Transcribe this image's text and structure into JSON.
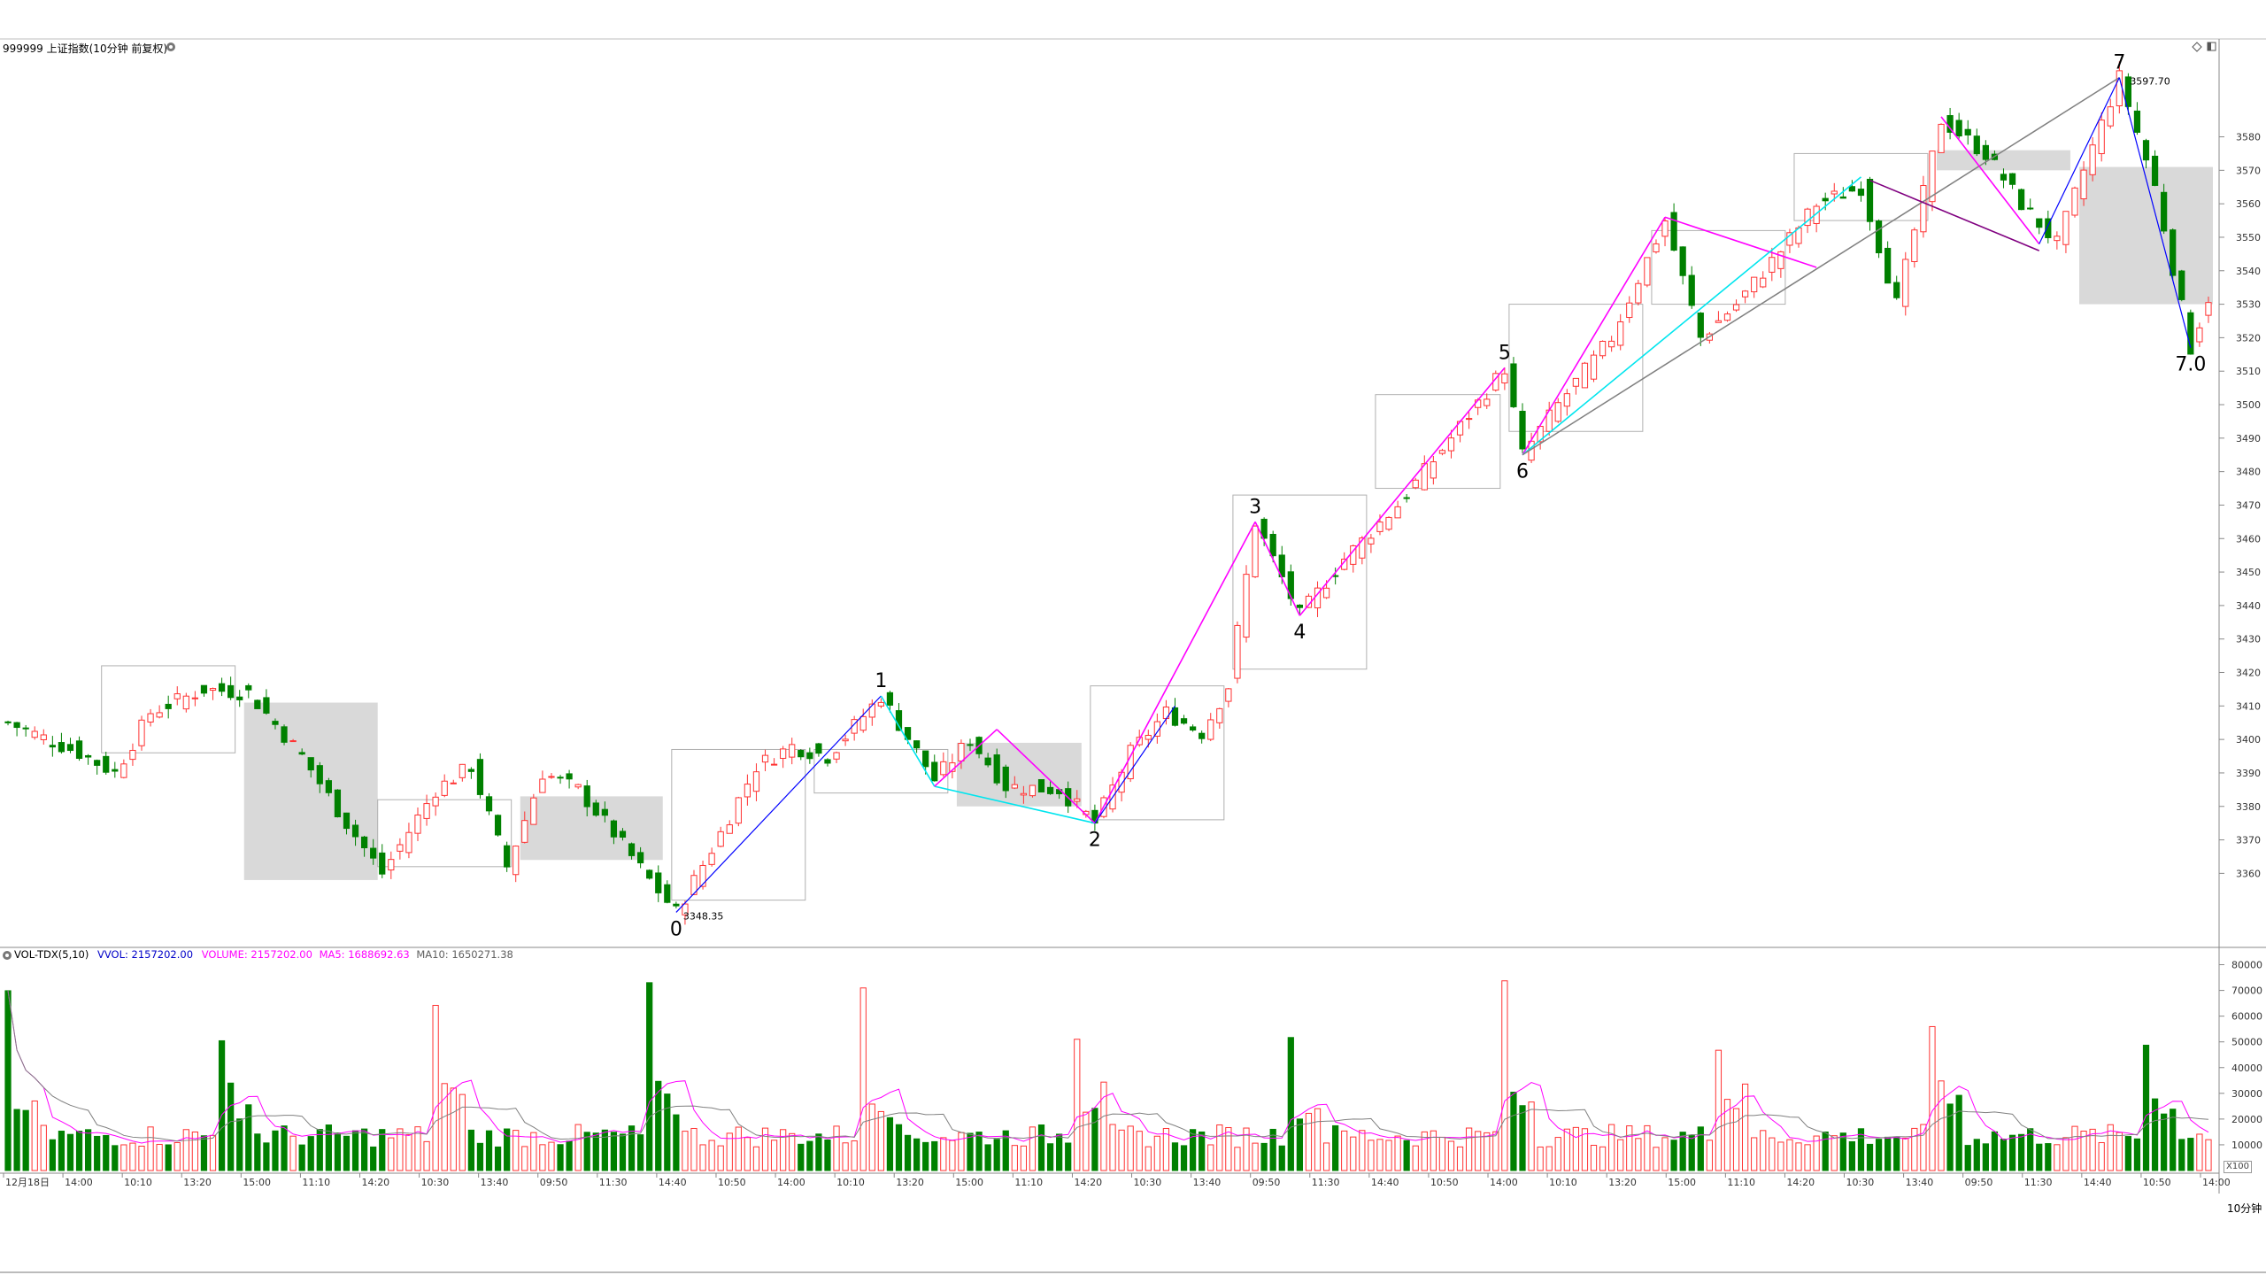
{
  "header": {
    "price_title": "999999 上证指数(10分钟 前复权)",
    "vol_indicator": "VOL-TDX(5,10)",
    "vvol": "VVOL: 2157202.00",
    "volume": "VOLUME: 2157202.00",
    "ma5": "MA5: 1688692.63",
    "ma10": "MA10: 1650271.38"
  },
  "annotations": {
    "low_price": "3348.35",
    "high_price": "3597.70",
    "wave_labels": [
      "0",
      "1",
      "2",
      "3",
      "4",
      "5",
      "6",
      "7",
      "7.0"
    ]
  },
  "footer": {
    "period": "10分钟",
    "multiplier": "X100"
  },
  "colors": {
    "up": "#ff3232",
    "down": "#008000",
    "magenta": "#ff00ff",
    "cyan": "#00e5ee",
    "blue": "#0000ff",
    "gray_line": "#808080",
    "purple": "#800080",
    "box_fill": "#d9d9d9"
  },
  "chart_data": [
    {
      "type": "candlestick",
      "y_ticks": [
        3360,
        3370,
        3380,
        3390,
        3400,
        3410,
        3420,
        3430,
        3440,
        3450,
        3460,
        3470,
        3480,
        3490,
        3500,
        3510,
        3520,
        3530,
        3540,
        3550,
        3560,
        3570,
        3580
      ],
      "ylim": [
        3340,
        3605
      ],
      "x_labels": [
        "12月18日",
        "14:00",
        "10:10",
        "13:20",
        "15:00",
        "11:10",
        "14:20",
        "10:30",
        "13:40",
        "09:50",
        "11:30",
        "14:40",
        "10:50",
        "14:00",
        "10:10",
        "13:20",
        "15:00",
        "11:10",
        "14:20",
        "10:30",
        "13:40",
        "09:50",
        "11:30",
        "14:40",
        "10:50",
        "14:00",
        "10:10",
        "13:20",
        "15:00",
        "11:10",
        "14:20",
        "10:30",
        "13:40",
        "09:50",
        "11:30",
        "14:40",
        "10:50",
        "14:00"
      ],
      "wave_points": [
        {
          "label": "0",
          "index": 75,
          "value": 3348.35
        },
        {
          "label": "1",
          "index": 98,
          "value": 3413
        },
        {
          "label": "2",
          "index": 122,
          "value": 3375
        },
        {
          "label": "3",
          "index": 140,
          "value": 3465
        },
        {
          "label": "4",
          "index": 145,
          "value": 3437
        },
        {
          "label": "5",
          "index": 168,
          "value": 3511
        },
        {
          "label": "6",
          "index": 170,
          "value": 3485
        },
        {
          "label": "7",
          "index": 237,
          "value": 3597.7
        },
        {
          "label": "7.0",
          "index": 245,
          "value": 3517
        }
      ]
    },
    {
      "type": "bar",
      "series": [
        {
          "name": "VOLUME"
        },
        {
          "name": "MA5"
        },
        {
          "name": "MA10"
        }
      ],
      "y_ticks": [
        10000,
        20000,
        30000,
        40000,
        50000,
        60000,
        70000,
        80000
      ],
      "ylim": [
        0,
        85000
      ]
    }
  ]
}
